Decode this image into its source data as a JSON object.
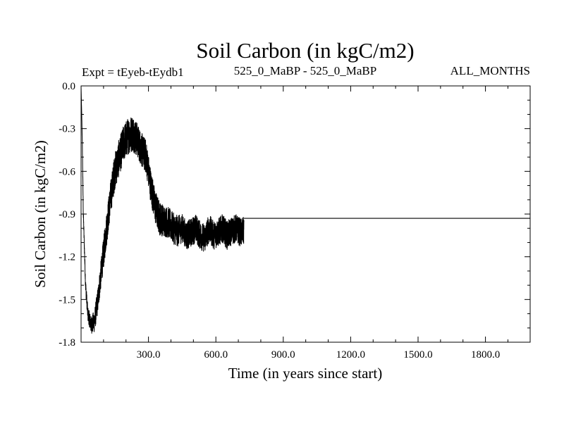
{
  "chart_data": {
    "type": "line",
    "title": "Soil Carbon (in kgC/m2)",
    "subtitle_left": "Expt = tEyeb-tEydb1",
    "subtitle_center": "525_0_MaBP - 525_0_MaBP",
    "subtitle_right": "ALL_MONTHS",
    "xlabel": "Time (in years since start)",
    "ylabel": "Soil Carbon (in kgC/m2)",
    "xlim": [
      0,
      1999
    ],
    "ylim": [
      -1.8,
      0.0
    ],
    "x_ticks": [
      300,
      600,
      900,
      1200,
      1500,
      1800
    ],
    "x_tick_labels": [
      "300.0",
      "600.0",
      "900.0",
      "1200.0",
      "1500.0",
      "1800.0"
    ],
    "y_ticks": [
      0.0,
      -0.3,
      -0.6,
      -0.9,
      -1.2,
      -1.5,
      -1.8
    ],
    "y_tick_labels": [
      "0.0",
      "-0.3",
      "-0.6",
      "-0.9",
      "-1.2",
      "-1.5",
      "-1.8"
    ],
    "grid": false,
    "series": [
      {
        "color": "#000000",
        "x": [
          0,
          5,
          10,
          20,
          30,
          45,
          60,
          75,
          90,
          110,
          130,
          150,
          170,
          190,
          210,
          230,
          250,
          270,
          290,
          310,
          330,
          350,
          370,
          390,
          410,
          430,
          450,
          470,
          490,
          510,
          530,
          550,
          570,
          590,
          610,
          630,
          650,
          670,
          690,
          710,
          725
        ],
        "y_center": [
          0.0,
          -0.35,
          -0.9,
          -1.4,
          -1.6,
          -1.68,
          -1.65,
          -1.5,
          -1.3,
          -1.05,
          -0.8,
          -0.6,
          -0.5,
          -0.4,
          -0.35,
          -0.33,
          -0.38,
          -0.45,
          -0.5,
          -0.7,
          -0.85,
          -0.93,
          -0.95,
          -0.96,
          -1.0,
          -1.02,
          -1.0,
          -1.05,
          -1.03,
          -1.0,
          -1.05,
          -1.07,
          -1.0,
          -1.05,
          -1.03,
          -1.0,
          -1.05,
          -1.02,
          -1.0,
          -1.03,
          -1.02
        ],
        "y_spread": [
          0.0,
          0.02,
          0.04,
          0.05,
          0.05,
          0.06,
          0.08,
          0.09,
          0.1,
          0.12,
          0.12,
          0.13,
          0.13,
          0.13,
          0.13,
          0.13,
          0.12,
          0.12,
          0.12,
          0.12,
          0.12,
          0.12,
          0.11,
          0.11,
          0.11,
          0.11,
          0.1,
          0.1,
          0.1,
          0.1,
          0.1,
          0.1,
          0.1,
          0.1,
          0.1,
          0.1,
          0.1,
          0.1,
          0.1,
          0.1,
          0.1
        ],
        "flat_from": 725,
        "flat_value": -0.93
      }
    ]
  }
}
